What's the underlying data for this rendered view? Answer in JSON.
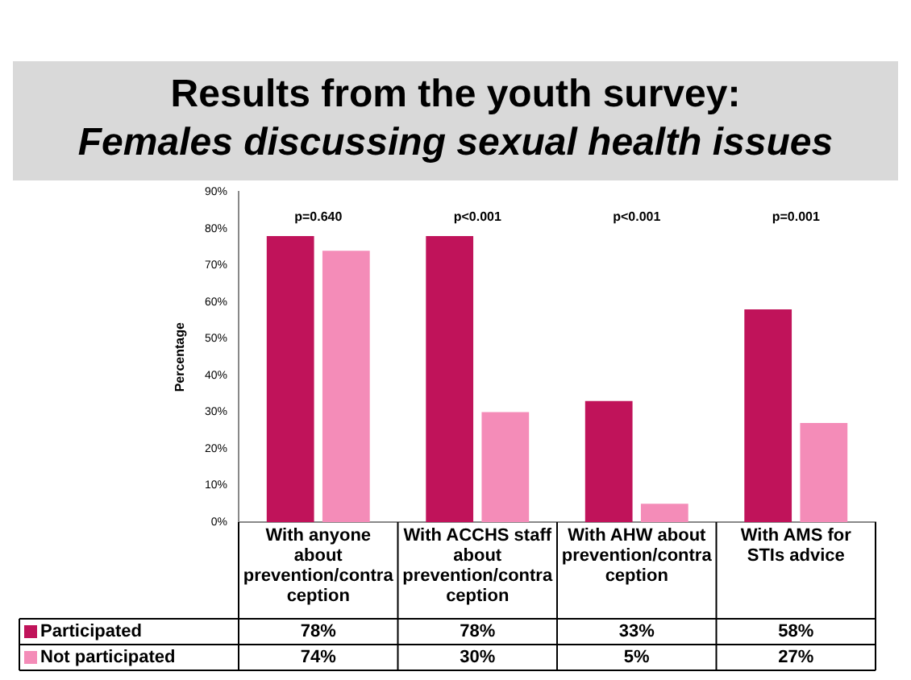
{
  "chart_data": {
    "type": "bar",
    "title": "Results from the youth survey:",
    "subtitle": "Females discussing sexual health issues",
    "ylabel": "Percentage",
    "categories": [
      "With anyone about prevention/contraception",
      "With ACCHS staff about prevention/contraception",
      "With AHW about prevention/contraception",
      "With AMS for STIs advice"
    ],
    "series": [
      {
        "name": "Participated",
        "color": "#c0135a",
        "values": [
          78,
          78,
          33,
          58
        ],
        "value_labels": [
          "78%",
          "78%",
          "33%",
          "58%"
        ]
      },
      {
        "name": "Not participated",
        "color": "#f48cb8",
        "values": [
          74,
          30,
          5,
          27
        ],
        "value_labels": [
          "74%",
          "30%",
          "5%",
          "27%"
        ]
      }
    ],
    "ylim": [
      0,
      90
    ],
    "yticks": [
      {
        "value": 0,
        "label": "0%"
      },
      {
        "value": 10,
        "label": "10%"
      },
      {
        "value": 20,
        "label": "20%"
      },
      {
        "value": 30,
        "label": "30%"
      },
      {
        "value": 40,
        "label": "40%"
      },
      {
        "value": 50,
        "label": "50%"
      },
      {
        "value": 60,
        "label": "60%"
      },
      {
        "value": 70,
        "label": "70%"
      },
      {
        "value": 80,
        "label": "80%"
      },
      {
        "value": 90,
        "label": "90%"
      }
    ],
    "annotations": [
      "p=0.640",
      "p<0.001",
      "p<0.001",
      "p=0.001"
    ],
    "grid": false,
    "legend": "bottom"
  }
}
